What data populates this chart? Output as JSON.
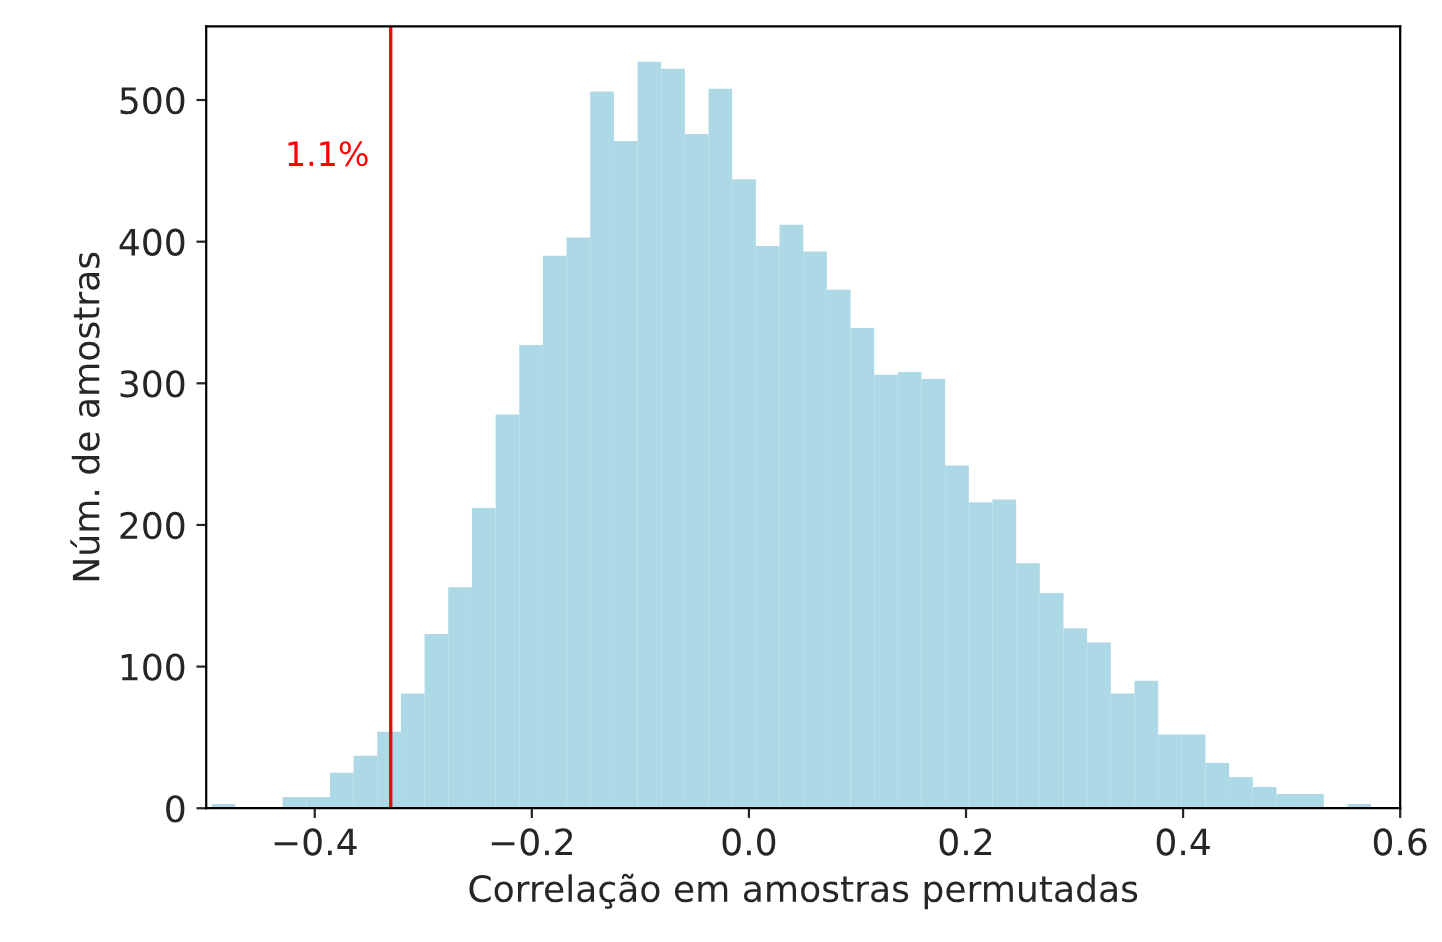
{
  "chart_data": {
    "type": "histogram",
    "xlabel": "Correlação em amostras permutadas",
    "ylabel": "Núm. de amostras",
    "bins": [
      -0.495,
      -0.4732,
      -0.4514,
      -0.4296,
      -0.4078,
      -0.386,
      -0.3642,
      -0.3424,
      -0.3206,
      -0.2988,
      -0.277,
      -0.2552,
      -0.2334,
      -0.2116,
      -0.1898,
      -0.168,
      -0.1462,
      -0.1244,
      -0.1026,
      -0.0808,
      -0.059,
      -0.0372,
      -0.0154,
      0.0064,
      0.0282,
      0.05,
      0.0718,
      0.0936,
      0.1154,
      0.1372,
      0.159,
      0.1808,
      0.2026,
      0.2244,
      0.2462,
      0.268,
      0.2898,
      0.3116,
      0.3334,
      0.3552,
      0.377,
      0.3988,
      0.4206,
      0.4424,
      0.4642,
      0.486,
      0.5078,
      0.5296,
      0.5514,
      0.5732
    ],
    "values": [
      3,
      0,
      0,
      8,
      8,
      25,
      37,
      54,
      81,
      123,
      156,
      212,
      278,
      327,
      390,
      403,
      506,
      471,
      527,
      522,
      476,
      508,
      444,
      397,
      412,
      393,
      366,
      339,
      306,
      308,
      303,
      242,
      216,
      218,
      173,
      152,
      127,
      117,
      81,
      90,
      52,
      52,
      32,
      22,
      15,
      10,
      10,
      0,
      3
    ],
    "color": "#add8e6",
    "xlim": [
      -0.5,
      0.6
    ],
    "xticks": [
      {
        "value": -0.4,
        "label": "−0.4"
      },
      {
        "value": -0.2,
        "label": "−0.2"
      },
      {
        "value": 0,
        "label": "0.0"
      },
      0.2,
      0.4,
      0.6
    ],
    "ylim": [
      0,
      552
    ],
    "yticks": [
      0,
      100,
      200,
      300,
      400,
      500
    ],
    "ref_lines": [
      {
        "axis": "x",
        "value": -0.33,
        "color": "#ff0000"
      }
    ],
    "annotations": [
      {
        "text": "1.1%",
        "x": -0.33,
        "y": 460
      }
    ],
    "grid": false
  }
}
